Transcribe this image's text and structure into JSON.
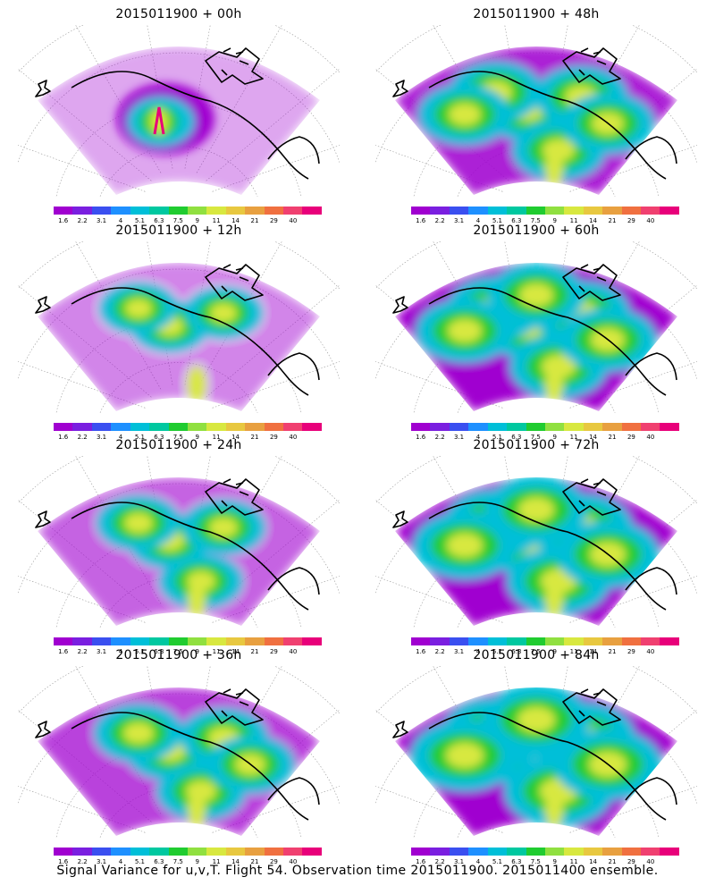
{
  "panels": [
    {
      "title": "2015011900 + 00h"
    },
    {
      "title": "2015011900 + 48h"
    },
    {
      "title": "2015011900 + 12h"
    },
    {
      "title": "2015011900 + 60h"
    },
    {
      "title": "2015011900 + 24h"
    },
    {
      "title": "2015011900 + 72h"
    },
    {
      "title": "2015011900 + 36h"
    },
    {
      "title": "2015011900 + 84h"
    }
  ],
  "colorbar": {
    "ticks": [
      "1.6",
      "2.2",
      "3.1",
      "4",
      "5.1",
      "6.3",
      "7.5",
      "9",
      "11",
      "14",
      "21",
      "29",
      "40"
    ],
    "colors": [
      "#a000d0",
      "#7a1fe0",
      "#3a4ff0",
      "#1e90ff",
      "#00bfd8",
      "#00c8a0",
      "#20cc30",
      "#90e040",
      "#d8e840",
      "#e8c840",
      "#e8a040",
      "#f07040",
      "#f04070",
      "#e8007a"
    ]
  },
  "caption": "Signal Variance for u,v,T. Flight 54. Observation time 2015011900. 2015011400 ensemble.",
  "map_colors": {
    "ocean_bg": "#ffffff",
    "grid": "#9a9a9a",
    "coast": "#000000",
    "low": "#a000d0",
    "mid": "#00bfd8",
    "green": "#20cc30",
    "yellow": "#d8e840",
    "orange": "#e8a040",
    "red": "#e8007a"
  }
}
